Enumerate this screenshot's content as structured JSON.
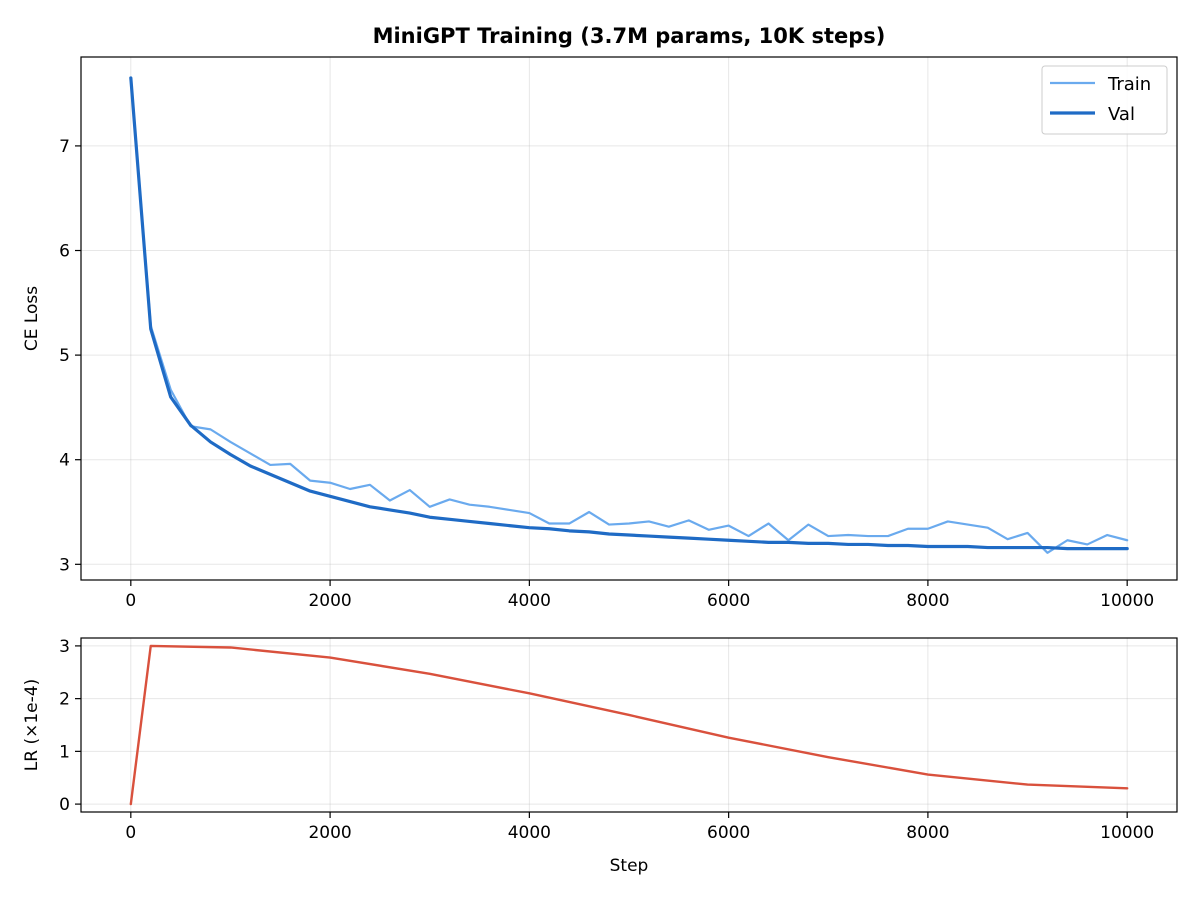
{
  "colors": {
    "train": "#6aaaee",
    "val": "#1f6bc5",
    "lr": "#d9513d"
  },
  "chart_data": [
    {
      "type": "line",
      "title": "MiniGPT Training (3.7M params, 10K steps)",
      "xlabel": "",
      "ylabel": "CE Loss",
      "xlim": [
        -500,
        10500
      ],
      "ylim": [
        2.85,
        7.85
      ],
      "xticks": [
        0,
        2000,
        4000,
        6000,
        8000,
        10000
      ],
      "yticks": [
        3,
        4,
        5,
        6,
        7
      ],
      "grid": true,
      "legend": "top-right",
      "series": [
        {
          "name": "Train",
          "x": [
            0,
            200,
            400,
            600,
            800,
            1000,
            1200,
            1400,
            1600,
            1800,
            2000,
            2200,
            2400,
            2600,
            2800,
            3000,
            3200,
            3400,
            3600,
            3800,
            4000,
            4200,
            4400,
            4600,
            4800,
            5000,
            5200,
            5400,
            5600,
            5800,
            6000,
            6200,
            6400,
            6600,
            6800,
            7000,
            7200,
            7400,
            7600,
            7800,
            8000,
            8200,
            8400,
            8600,
            8800,
            9000,
            9200,
            9400,
            9600,
            9800,
            10000
          ],
          "y": [
            7.65,
            5.28,
            4.67,
            4.32,
            4.29,
            4.17,
            4.06,
            3.95,
            3.96,
            3.8,
            3.78,
            3.72,
            3.76,
            3.61,
            3.71,
            3.55,
            3.62,
            3.57,
            3.55,
            3.52,
            3.49,
            3.39,
            3.39,
            3.5,
            3.38,
            3.39,
            3.41,
            3.36,
            3.42,
            3.33,
            3.37,
            3.27,
            3.39,
            3.23,
            3.38,
            3.27,
            3.28,
            3.27,
            3.27,
            3.34,
            3.34,
            3.41,
            3.38,
            3.35,
            3.24,
            3.3,
            3.11,
            3.23,
            3.19,
            3.28,
            3.23
          ]
        },
        {
          "name": "Val",
          "x": [
            0,
            200,
            400,
            600,
            800,
            1000,
            1200,
            1400,
            1600,
            1800,
            2000,
            2200,
            2400,
            2600,
            2800,
            3000,
            3200,
            3400,
            3600,
            3800,
            4000,
            4200,
            4400,
            4600,
            4800,
            5000,
            5200,
            5400,
            5600,
            5800,
            6000,
            6200,
            6400,
            6600,
            6800,
            7000,
            7200,
            7400,
            7600,
            7800,
            8000,
            8200,
            8400,
            8600,
            8800,
            9000,
            9200,
            9400,
            9600,
            9800,
            10000
          ],
          "y": [
            7.65,
            5.25,
            4.6,
            4.33,
            4.17,
            4.05,
            3.94,
            3.86,
            3.78,
            3.7,
            3.65,
            3.6,
            3.55,
            3.52,
            3.49,
            3.45,
            3.43,
            3.41,
            3.39,
            3.37,
            3.35,
            3.34,
            3.32,
            3.31,
            3.29,
            3.28,
            3.27,
            3.26,
            3.25,
            3.24,
            3.23,
            3.22,
            3.21,
            3.21,
            3.2,
            3.2,
            3.19,
            3.19,
            3.18,
            3.18,
            3.17,
            3.17,
            3.17,
            3.16,
            3.16,
            3.16,
            3.16,
            3.15,
            3.15,
            3.15,
            3.15
          ]
        }
      ]
    },
    {
      "type": "line",
      "title": "",
      "xlabel": "Step",
      "ylabel": "LR (×1e-4)",
      "xlim": [
        -500,
        10500
      ],
      "ylim": [
        -0.15,
        3.15
      ],
      "xticks": [
        0,
        2000,
        4000,
        6000,
        8000,
        10000
      ],
      "yticks": [
        0,
        1,
        2,
        3
      ],
      "grid": true,
      "series": [
        {
          "x": [
            0,
            200,
            1000,
            2000,
            3000,
            4000,
            5000,
            6000,
            7000,
            8000,
            9000,
            10000
          ],
          "y": [
            0.0,
            3.0,
            2.97,
            2.78,
            2.47,
            2.1,
            1.69,
            1.26,
            0.89,
            0.56,
            0.37,
            0.3
          ]
        }
      ]
    }
  ]
}
